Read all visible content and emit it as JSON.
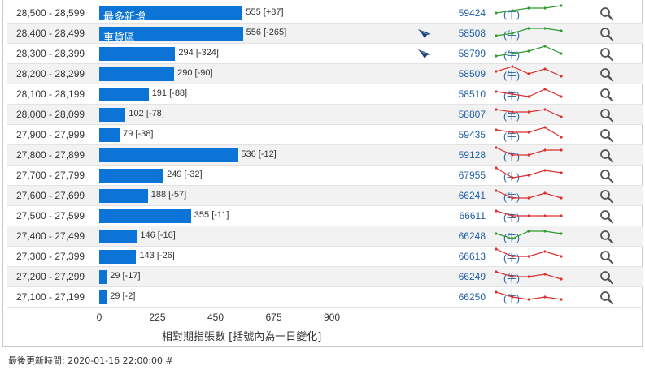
{
  "table": {
    "rows": [
      {
        "range": "28,500 - 28,599",
        "value": "555 [+87]",
        "bar_value": 555,
        "bar_label": "最多新增",
        "code": "59424",
        "type": "(牛)",
        "flag": false,
        "trend": "up",
        "spark": [
          3,
          4,
          5,
          5,
          6
        ]
      },
      {
        "range": "28,400 - 28,499",
        "value": "556 [-265]",
        "bar_value": 556,
        "bar_label": "重貨區",
        "code": "58508",
        "type": "(牛)",
        "flag": true,
        "trend": "up",
        "spark": [
          2,
          3,
          5,
          5,
          4
        ]
      },
      {
        "range": "28,300 - 28,399",
        "value": "294 [-324]",
        "bar_value": 294,
        "bar_label": "",
        "code": "58799",
        "type": "(牛)",
        "flag": true,
        "trend": "up",
        "spark": [
          2,
          3,
          4,
          6,
          3
        ]
      },
      {
        "range": "28,200 - 28,299",
        "value": "290 [-90]",
        "bar_value": 290,
        "bar_label": "",
        "code": "58509",
        "type": "(牛)",
        "flag": false,
        "trend": "down",
        "spark": [
          4,
          6,
          3,
          5,
          2
        ]
      },
      {
        "range": "28,100 - 28,199",
        "value": "191 [-88]",
        "bar_value": 191,
        "bar_label": "",
        "code": "58510",
        "type": "(牛)",
        "flag": false,
        "trend": "down",
        "spark": [
          4,
          3,
          2,
          5,
          2
        ]
      },
      {
        "range": "28,000 - 28,099",
        "value": "102 [-78]",
        "bar_value": 102,
        "bar_label": "",
        "code": "58807",
        "type": "(牛)",
        "flag": false,
        "trend": "down",
        "spark": [
          5,
          4,
          4,
          5,
          2
        ]
      },
      {
        "range": "27,900 - 27,999",
        "value": "79 [-38]",
        "bar_value": 79,
        "bar_label": "",
        "code": "59435",
        "type": "(牛)",
        "flag": false,
        "trend": "down",
        "spark": [
          5,
          4,
          4,
          6,
          2
        ]
      },
      {
        "range": "27,800 - 27,899",
        "value": "536 [-12]",
        "bar_value": 536,
        "bar_label": "",
        "code": "59128",
        "type": "(牛)",
        "flag": false,
        "trend": "down",
        "spark": [
          6,
          3,
          3,
          5,
          5
        ]
      },
      {
        "range": "27,700 - 27,799",
        "value": "249 [-32]",
        "bar_value": 249,
        "bar_label": "",
        "code": "67955",
        "type": "(牛)",
        "flag": false,
        "trend": "down",
        "spark": [
          6,
          2,
          3,
          5,
          4
        ]
      },
      {
        "range": "27,600 - 27,699",
        "value": "188 [-57]",
        "bar_value": 188,
        "bar_label": "",
        "code": "66241",
        "type": "(牛)",
        "flag": false,
        "trend": "down",
        "spark": [
          5,
          2,
          2,
          4,
          2
        ]
      },
      {
        "range": "27,500 - 27,599",
        "value": "355 [-11]",
        "bar_value": 355,
        "bar_label": "",
        "code": "66611",
        "type": "(牛)",
        "flag": false,
        "trend": "down",
        "spark": [
          5,
          3,
          3,
          3,
          3
        ]
      },
      {
        "range": "27,400 - 27,499",
        "value": "146 [-16]",
        "bar_value": 146,
        "bar_label": "",
        "code": "66248",
        "type": "(牛)",
        "flag": false,
        "trend": "up",
        "spark": [
          4,
          2,
          5,
          5,
          4
        ]
      },
      {
        "range": "27,300 - 27,399",
        "value": "143 [-26]",
        "bar_value": 143,
        "bar_label": "",
        "code": "66613",
        "type": "(牛)",
        "flag": false,
        "trend": "down",
        "spark": [
          6,
          3,
          3,
          5,
          3
        ]
      },
      {
        "range": "27,200 - 27,299",
        "value": "29 [-17]",
        "bar_value": 29,
        "bar_label": "",
        "code": "66249",
        "type": "(牛)",
        "flag": false,
        "trend": "down",
        "spark": [
          5,
          3,
          3,
          4,
          2
        ]
      },
      {
        "range": "27,100 - 27,199",
        "value": "29 [-2]",
        "bar_value": 29,
        "bar_label": "",
        "code": "66250",
        "type": "(牛)",
        "flag": false,
        "trend": "down",
        "spark": [
          5,
          3,
          2,
          3,
          2
        ]
      }
    ],
    "alt_rows": [
      1,
      3,
      5,
      7,
      9,
      11,
      13
    ]
  },
  "chart_data": {
    "type": "bar",
    "categories": [
      "28,500 - 28,599",
      "28,400 - 28,499",
      "28,300 - 28,399",
      "28,200 - 28,299",
      "28,100 - 28,199",
      "28,000 - 28,099",
      "27,900 - 27,999",
      "27,800 - 27,899",
      "27,700 - 27,799",
      "27,600 - 27,699",
      "27,500 - 27,599",
      "27,400 - 27,499",
      "27,300 - 27,399",
      "27,200 - 27,299",
      "27,100 - 27,199"
    ],
    "values": [
      555,
      556,
      294,
      290,
      191,
      102,
      79,
      536,
      249,
      188,
      355,
      146,
      143,
      29,
      29
    ],
    "changes": [
      87,
      -265,
      -324,
      -90,
      -88,
      -78,
      -38,
      -12,
      -32,
      -57,
      -11,
      -16,
      -26,
      -17,
      -2
    ],
    "xlabel": "相對期指張數 [括號內為一日變化]",
    "xlim": [
      0,
      900
    ],
    "xticks": [
      "0",
      "225",
      "450",
      "675",
      "900"
    ]
  },
  "axis": {
    "ticks": [
      "0",
      "225",
      "450",
      "675",
      "900"
    ],
    "title": "相對期指張數 [括號內為一日變化]"
  },
  "footer": {
    "text": "最後更新時間: 2020-01-16 22:00:00 #"
  },
  "colors": {
    "bar": "#0b74d6",
    "up": "#2e9b2e",
    "down": "#d93030",
    "link": "#1f5fa8"
  },
  "icons": {
    "row_action": "search-icon",
    "flag": "bank-flag-icon"
  }
}
